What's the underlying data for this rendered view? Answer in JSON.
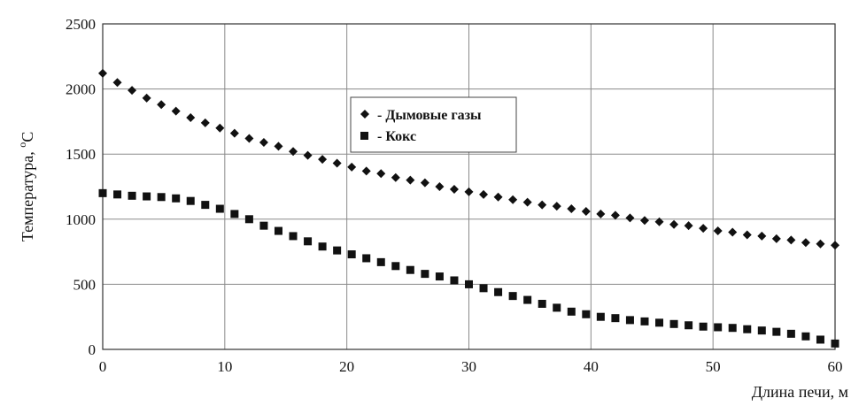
{
  "chart_data": {
    "type": "scatter",
    "title": "",
    "xlabel": "Длина печи, м",
    "ylabel": "Температура, °C",
    "ylabel_parts": [
      "Температура, ",
      "o",
      "C"
    ],
    "xlim": [
      0,
      60
    ],
    "ylim": [
      0,
      2500
    ],
    "xticks": [
      "0",
      "10",
      "20",
      "30",
      "40",
      "50",
      "60"
    ],
    "yticks": [
      "0",
      "500",
      "1000",
      "1500",
      "2000",
      "2500"
    ],
    "grid": true,
    "legend_position": "upper-center",
    "series": [
      {
        "name": "- Дымовые газы",
        "marker": "diamond",
        "x": [
          0,
          1.2,
          2.4,
          3.6,
          4.8,
          6,
          7.2,
          8.4,
          9.6,
          10.8,
          12,
          13.2,
          14.4,
          15.6,
          16.8,
          18,
          19.2,
          20.4,
          21.6,
          22.8,
          24,
          25.2,
          26.4,
          27.6,
          28.8,
          30,
          31.2,
          32.4,
          33.6,
          34.8,
          36,
          37.2,
          38.4,
          39.6,
          40.8,
          42,
          43.2,
          44.4,
          45.6,
          46.8,
          48,
          49.2,
          50.4,
          51.6,
          52.8,
          54,
          55.2,
          56.4,
          57.6,
          58.8,
          60
        ],
        "y": [
          2120,
          2050,
          1990,
          1930,
          1880,
          1830,
          1780,
          1740,
          1700,
          1660,
          1620,
          1590,
          1560,
          1520,
          1490,
          1460,
          1430,
          1400,
          1370,
          1350,
          1320,
          1300,
          1280,
          1250,
          1230,
          1210,
          1190,
          1170,
          1150,
          1130,
          1110,
          1100,
          1080,
          1060,
          1040,
          1030,
          1010,
          990,
          980,
          960,
          950,
          930,
          910,
          900,
          880,
          870,
          850,
          840,
          820,
          810,
          800
        ]
      },
      {
        "name": "- Кокс",
        "marker": "square",
        "x": [
          0,
          1.2,
          2.4,
          3.6,
          4.8,
          6,
          7.2,
          8.4,
          9.6,
          10.8,
          12,
          13.2,
          14.4,
          15.6,
          16.8,
          18,
          19.2,
          20.4,
          21.6,
          22.8,
          24,
          25.2,
          26.4,
          27.6,
          28.8,
          30,
          31.2,
          32.4,
          33.6,
          34.8,
          36,
          37.2,
          38.4,
          39.6,
          40.8,
          42,
          43.2,
          44.4,
          45.6,
          46.8,
          48,
          49.2,
          50.4,
          51.6,
          52.8,
          54,
          55.2,
          56.4,
          57.6,
          58.8,
          60
        ],
        "y": [
          1200,
          1190,
          1180,
          1175,
          1170,
          1160,
          1140,
          1110,
          1080,
          1040,
          1000,
          950,
          910,
          870,
          830,
          790,
          760,
          730,
          700,
          670,
          640,
          610,
          580,
          560,
          530,
          500,
          470,
          440,
          410,
          380,
          350,
          320,
          290,
          270,
          250,
          240,
          225,
          215,
          205,
          195,
          185,
          175,
          170,
          165,
          155,
          145,
          135,
          120,
          100,
          75,
          45
        ]
      }
    ]
  }
}
